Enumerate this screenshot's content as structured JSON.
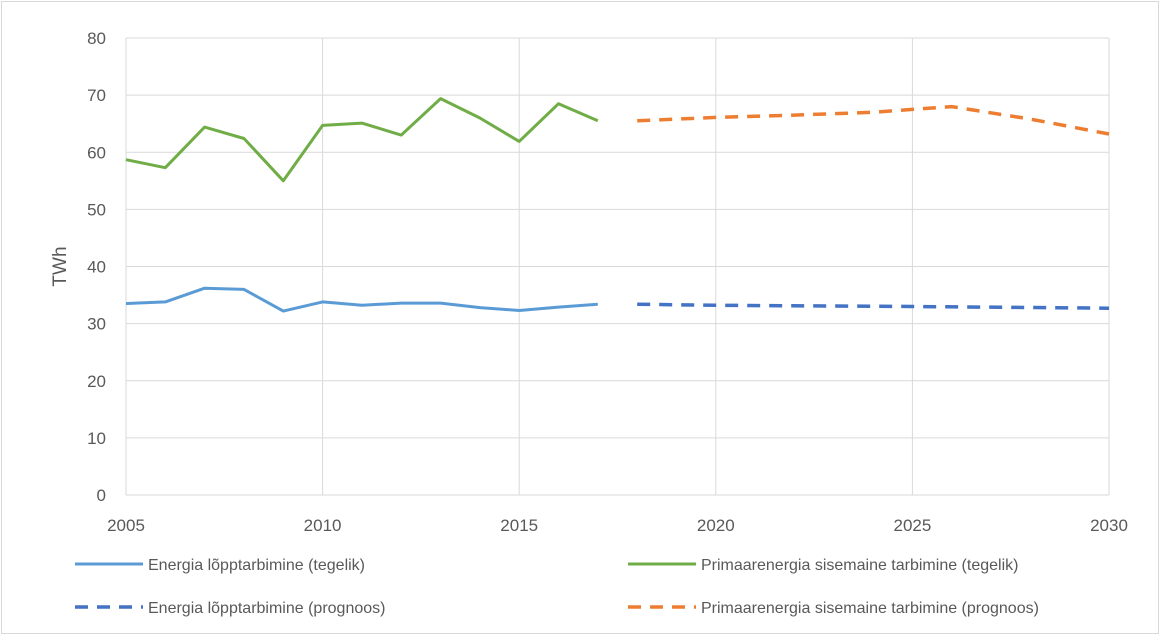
{
  "chart_data": {
    "type": "line",
    "title": "",
    "xlabel": "",
    "ylabel": "TWh",
    "xlim": [
      2005,
      2030
    ],
    "ylim": [
      0,
      80
    ],
    "x_ticks": [
      "2005",
      "2010",
      "2015",
      "2020",
      "2025",
      "2030"
    ],
    "y_ticks": [
      "0",
      "10",
      "20",
      "30",
      "40",
      "50",
      "60",
      "70",
      "80"
    ],
    "grid": true,
    "legend_placement": "bottom",
    "series": [
      {
        "name": "Energia lõpptarbimine (tegelik)",
        "color": "#5b9bd5",
        "dashed": false,
        "x": [
          2005,
          2006,
          2007,
          2008,
          2009,
          2010,
          2011,
          2012,
          2013,
          2014,
          2015,
          2016,
          2017
        ],
        "values": [
          33.5,
          33.8,
          36.2,
          36.0,
          32.2,
          33.8,
          33.2,
          33.6,
          33.6,
          32.8,
          32.3,
          32.9,
          33.4
        ]
      },
      {
        "name": "Primaarenergia sisemaine tarbimine (tegelik)",
        "color": "#70ad47",
        "dashed": false,
        "x": [
          2005,
          2006,
          2007,
          2008,
          2009,
          2010,
          2011,
          2012,
          2013,
          2014,
          2015,
          2016,
          2017
        ],
        "values": [
          58.7,
          57.3,
          64.4,
          62.4,
          55.0,
          64.7,
          65.1,
          63.0,
          69.4,
          66.0,
          61.9,
          68.5,
          65.5
        ]
      },
      {
        "name": "Energia lõpptarbimine (prognoos)",
        "color": "#4472c4",
        "dashed": true,
        "x": [
          2018,
          2020,
          2025,
          2030
        ],
        "values": [
          33.4,
          33.2,
          33.0,
          32.7
        ]
      },
      {
        "name": "Primaarenergia sisemaine tarbimine (prognoos)",
        "color": "#ed7d31",
        "dashed": true,
        "x": [
          2018,
          2020,
          2022,
          2024,
          2025,
          2026,
          2028,
          2030
        ],
        "values": [
          65.5,
          66.1,
          66.5,
          67.0,
          67.5,
          68.0,
          65.8,
          63.2
        ]
      }
    ]
  }
}
